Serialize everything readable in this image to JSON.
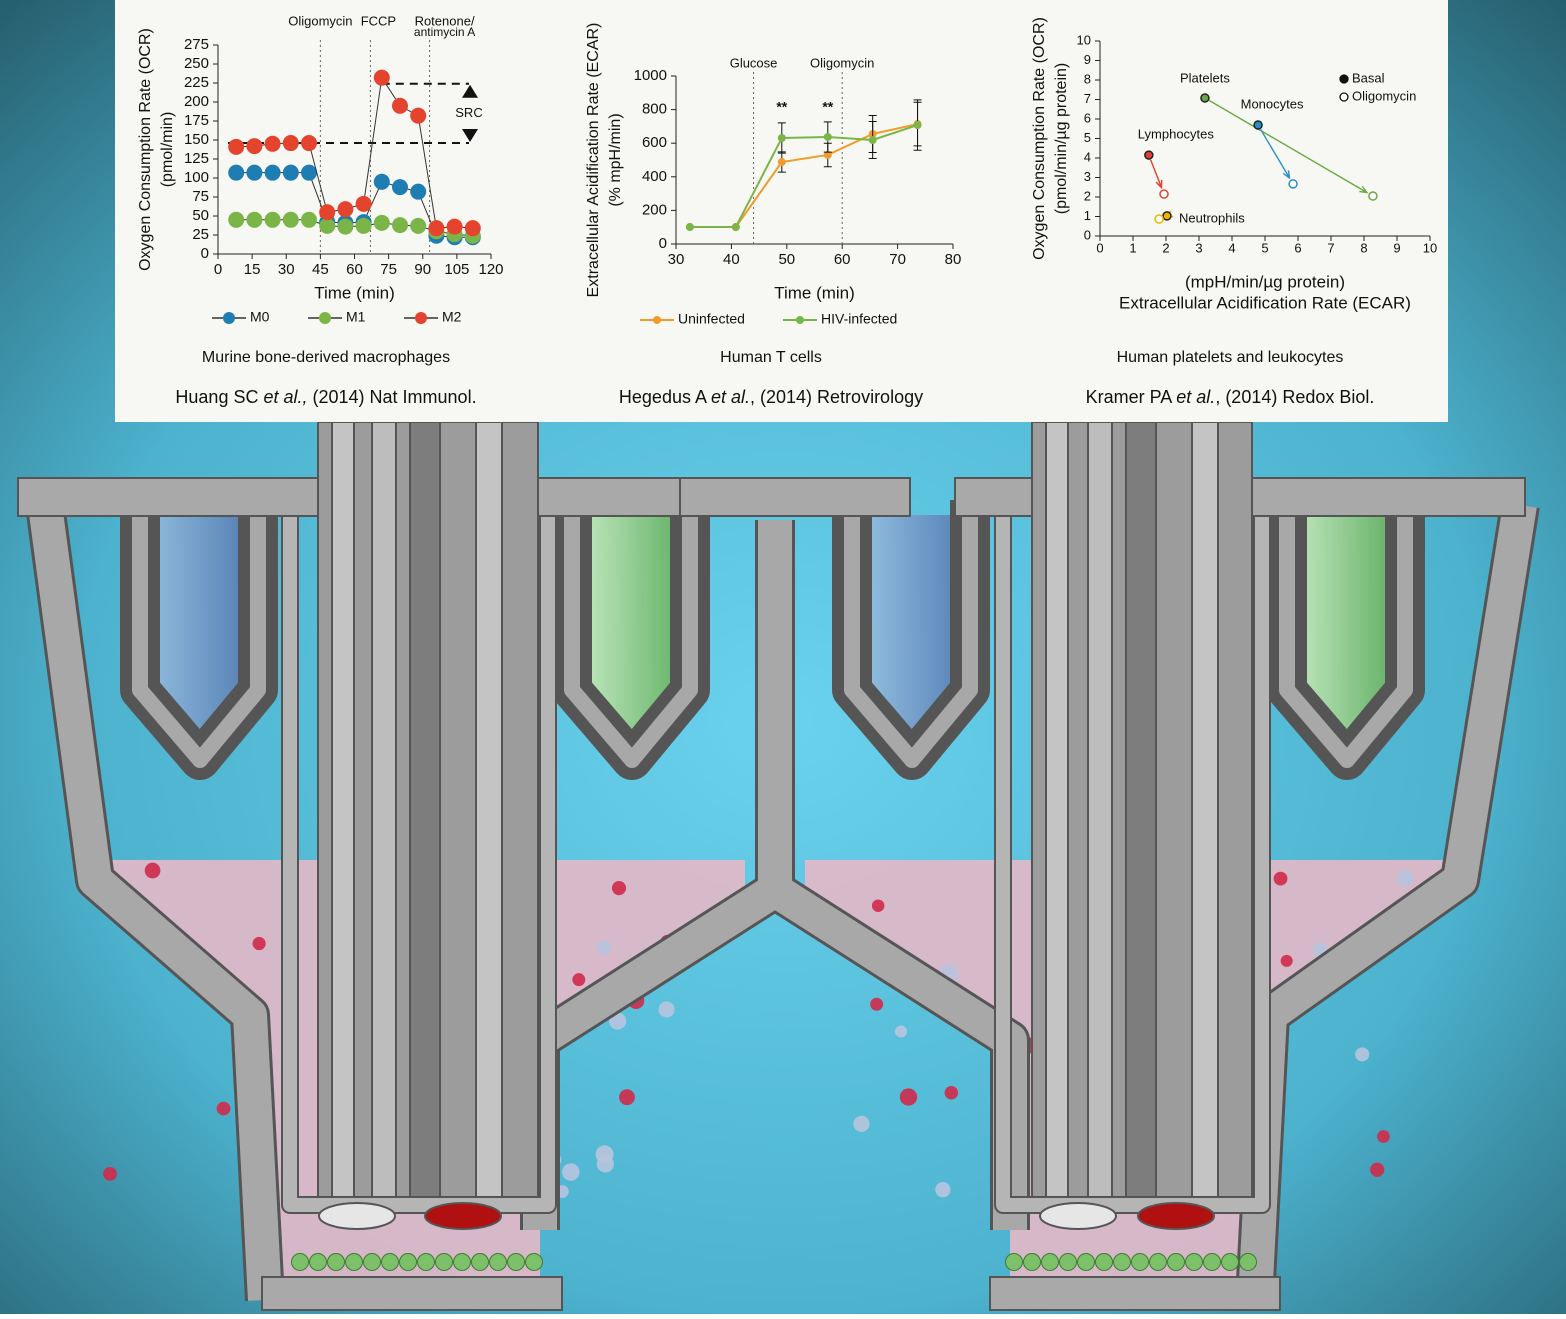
{
  "chart_data": [
    {
      "type": "line",
      "ylabel": [
        "Oxygen Consumption Rate (OCR)",
        "(pmol/min)"
      ],
      "xlabel": "Time (min)",
      "x": [
        8,
        16,
        24,
        32,
        40,
        48,
        56,
        64,
        72,
        80,
        88,
        96,
        104,
        112
      ],
      "series": [
        {
          "name": "M0",
          "color": "#1e7db3",
          "values": [
            107,
            107,
            107,
            107,
            107,
            42,
            41,
            42,
            95,
            88,
            82,
            24,
            22,
            22
          ]
        },
        {
          "name": "M1",
          "color": "#7bb547",
          "values": [
            45,
            45,
            45,
            45,
            45,
            37,
            36,
            37,
            41,
            38,
            37,
            30,
            26,
            24
          ]
        },
        {
          "name": "M2",
          "color": "#e4432e",
          "values": [
            141,
            142,
            145,
            146,
            146,
            55,
            59,
            66,
            232,
            195,
            182,
            34,
            36,
            34
          ]
        }
      ],
      "xlim": [
        0,
        120
      ],
      "xticks": [
        0,
        15,
        30,
        45,
        60,
        75,
        90,
        105,
        120
      ],
      "ylim": [
        0,
        275
      ],
      "yticks": [
        0,
        25,
        50,
        75,
        100,
        125,
        150,
        175,
        200,
        225,
        250,
        275
      ],
      "events": [
        {
          "x": 45,
          "label": [
            "Oligomycin"
          ]
        },
        {
          "x": 67,
          "label": [
            "FCCP"
          ]
        },
        {
          "x": 93,
          "label": [
            "Rotenone/",
            "antimycin A"
          ]
        }
      ],
      "src": {
        "label": "SRC",
        "low": 146,
        "high": 224
      },
      "caption": "Murine bone-derived macrophages",
      "citation": [
        "Huang SC ",
        "et al.,",
        " (2014) Nat Immunol."
      ]
    },
    {
      "type": "line",
      "ylabel": [
        "Extracellular Acidification Rate (ECAR)",
        "(% mpH/min)"
      ],
      "xlabel": "Time (min)",
      "x": [
        32.5,
        40.8,
        49.1,
        57.4,
        65.5,
        73.6
      ],
      "series": [
        {
          "name": "Uninfected",
          "color": "#f39a2c",
          "values": [
            101,
            101,
            488,
            530,
            655,
            714
          ],
          "errors": [
            0,
            0,
            60,
            70,
            110,
            130
          ]
        },
        {
          "name": "HIV-infected",
          "color": "#7bb547",
          "values": [
            101,
            101,
            631,
            637,
            619,
            708
          ],
          "errors": [
            0,
            0,
            90,
            90,
            110,
            150
          ]
        }
      ],
      "xlim": [
        30,
        80
      ],
      "xticks": [
        30,
        40,
        50,
        60,
        70,
        80
      ],
      "ylim": [
        0,
        1000
      ],
      "yticks": [
        0,
        200,
        400,
        600,
        800,
        1000
      ],
      "events": [
        {
          "x": 44,
          "label": [
            "Glucose"
          ]
        },
        {
          "x": 60,
          "label": [
            "Oligomycin"
          ]
        }
      ],
      "annotations": [
        {
          "x": 49.1,
          "y": 810,
          "text": "**"
        },
        {
          "x": 57.4,
          "y": 810,
          "text": "**"
        }
      ],
      "caption": "Human T cells",
      "citation": [
        "Hegedus A ",
        "et al.",
        ", (2014) Retrovirology"
      ]
    },
    {
      "type": "scatter",
      "ylabel": [
        "Oxygen Consumption Rate (OCR)",
        "(pmol/min/µg protein)"
      ],
      "xlabel": [
        "(mpH/min/µg protein)",
        "Extracellular Acidification Rate (ECAR)"
      ],
      "groups": [
        "Platelets",
        "Monocytes",
        "Lymphocytes",
        "Neutrophils"
      ],
      "group_colors": [
        "#6aa842",
        "#2b8fc4",
        "#e2402c",
        "#f0b400"
      ],
      "series": [
        {
          "name": "Basal",
          "x": [
            3.18,
            4.79,
            1.48,
            2.03
          ],
          "values": [
            7.08,
            5.69,
            4.15,
            1.03
          ]
        },
        {
          "name": "Oligomycin",
          "x": [
            8.27,
            5.85,
            1.94,
            1.79
          ],
          "values": [
            2.05,
            2.67,
            2.15,
            0.87
          ]
        }
      ],
      "xlim": [
        0,
        10
      ],
      "xticks": [
        0,
        1,
        2,
        3,
        4,
        5,
        6,
        7,
        8,
        9,
        10
      ],
      "ylim": [
        0,
        10
      ],
      "yticks": [
        0,
        1,
        2,
        3,
        4,
        5,
        6,
        7,
        8,
        9,
        10
      ],
      "caption": "Human platelets and leukocytes",
      "citation": [
        "Kramer PA ",
        "et al.",
        ", (2014) Redox Biol."
      ]
    }
  ]
}
